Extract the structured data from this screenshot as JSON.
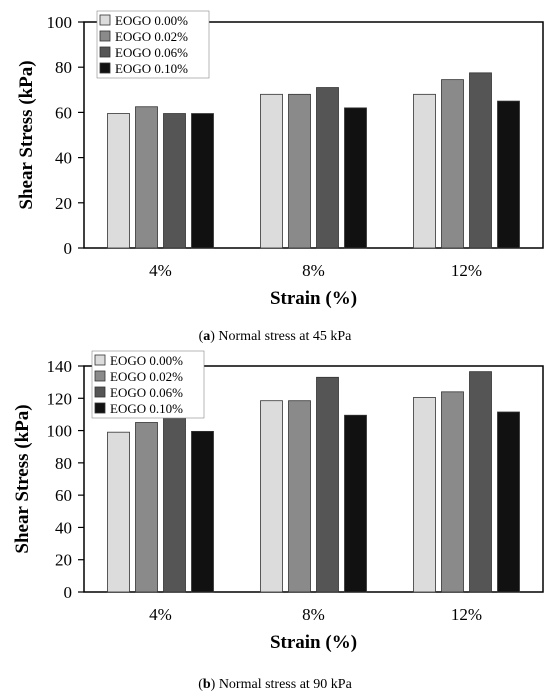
{
  "chart_data": [
    {
      "type": "bar",
      "categories": [
        "4%",
        "8%",
        "12%"
      ],
      "series": [
        {
          "name": "EOGO 0.00%",
          "values": [
            59.5,
            68,
            68
          ]
        },
        {
          "name": "EOGO 0.02%",
          "values": [
            62.5,
            68,
            74.5
          ]
        },
        {
          "name": "EOGO 0.06%",
          "values": [
            59.5,
            71,
            77.5
          ]
        },
        {
          "name": "EOGO 0.10%",
          "values": [
            59.5,
            62,
            65
          ]
        }
      ],
      "xlabel": "Strain (%)",
      "ylabel": "Shear Stress (kPa)",
      "ylim": [
        0,
        100
      ],
      "yticks": [
        0,
        20,
        40,
        60,
        80,
        100
      ],
      "legend": "top-left",
      "grid": false,
      "caption_label": "a",
      "caption_text": " Normal stress at 45 kPa"
    },
    {
      "type": "bar",
      "categories": [
        "4%",
        "8%",
        "12%"
      ],
      "series": [
        {
          "name": "EOGO 0.00%",
          "values": [
            99,
            118.5,
            120.5
          ]
        },
        {
          "name": "EOGO 0.02%",
          "values": [
            105,
            118.5,
            124
          ]
        },
        {
          "name": "EOGO 0.06%",
          "values": [
            110.5,
            133,
            136.5
          ]
        },
        {
          "name": "EOGO 0.10%",
          "values": [
            99.5,
            109.5,
            111.5
          ]
        }
      ],
      "xlabel": "Strain (%)",
      "ylabel": "Shear Stress (kPa)",
      "ylim": [
        0,
        140
      ],
      "yticks": [
        0,
        20,
        40,
        60,
        80,
        100,
        120,
        140
      ],
      "legend": "top-left",
      "grid": false,
      "caption_label": "b",
      "caption_text": " Normal stress at 90 kPa"
    }
  ],
  "colors": {
    "series": [
      "#dcdcdc",
      "#8a8a8a",
      "#555555",
      "#111111"
    ],
    "bar_stroke": "#333333"
  }
}
